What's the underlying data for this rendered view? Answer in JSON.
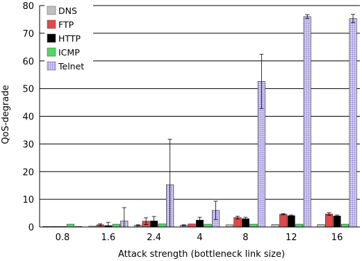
{
  "chart_data": {
    "type": "bar",
    "categories": [
      "0.8",
      "1.6",
      "2.4",
      "4",
      "8",
      "12",
      "16"
    ],
    "xlabel": "Attack strength (bottleneck link size)",
    "ylabel": "QoS-degrade",
    "ylim": [
      0,
      80
    ],
    "yticks": [
      0,
      10,
      20,
      30,
      40,
      50,
      60,
      70,
      80
    ],
    "grid": "horizontal",
    "legend_position": "top-left",
    "series": [
      {
        "name": "DNS",
        "color": "#c0c0c0",
        "pattern": "solid",
        "values": [
          0.2,
          0.3,
          0.6,
          0.6,
          0.8,
          0.9,
          0.9
        ],
        "errors": [
          0,
          0,
          0.2,
          0.2,
          0,
          0,
          0
        ]
      },
      {
        "name": "FTP",
        "color": "#e34848",
        "pattern": "solid",
        "values": [
          0.2,
          0.8,
          2.1,
          1.1,
          3.4,
          4.6,
          4.7
        ],
        "errors": [
          0,
          0.3,
          1.2,
          0,
          0.5,
          0.2,
          0.5
        ]
      },
      {
        "name": "HTTP",
        "color": "#000000",
        "pattern": "solid",
        "values": [
          0.2,
          0.5,
          2.2,
          2.5,
          3.0,
          4.1,
          4.0
        ],
        "errors": [
          0,
          1.2,
          1.6,
          1.0,
          0.5,
          0.2,
          0.3
        ]
      },
      {
        "name": "ICMP",
        "color": "#4cd964",
        "pattern": "solid",
        "values": [
          1.0,
          1.0,
          1.1,
          1.0,
          1.0,
          1.0,
          1.0
        ],
        "errors": [
          0,
          0,
          0,
          0,
          0,
          0,
          0
        ]
      },
      {
        "name": "Telnet",
        "color": "#d9d2f5",
        "pattern": "grid",
        "values": [
          0.2,
          2.2,
          15.3,
          6.0,
          52.6,
          76.0,
          75.3
        ],
        "errors": [
          0,
          4.8,
          16.4,
          3.3,
          9.8,
          0.7,
          1.5
        ]
      }
    ]
  }
}
